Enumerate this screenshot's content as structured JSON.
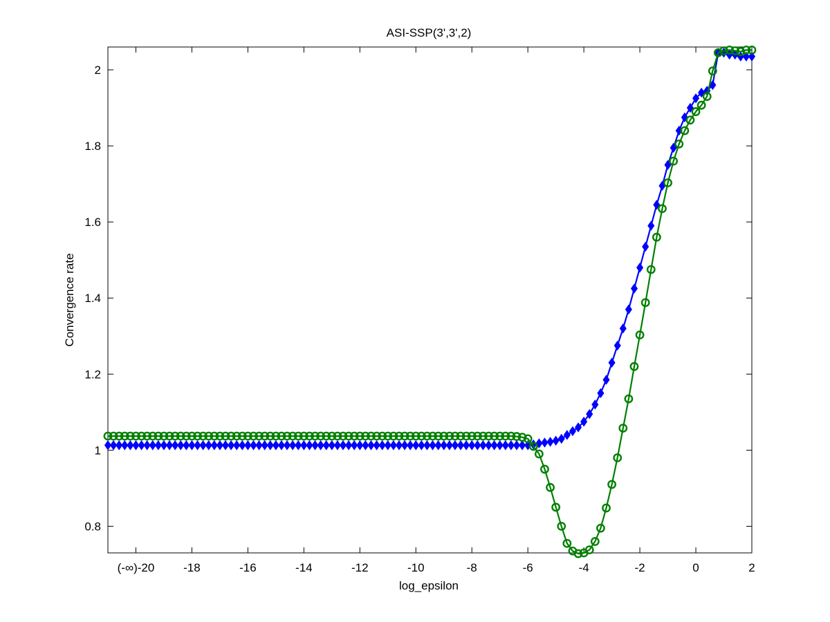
{
  "chart_data": {
    "type": "line",
    "title": "ASI-SSP(3',3',2)",
    "xlabel": "log_epsilon",
    "ylabel": "Convergence rate",
    "xlim": [
      -21,
      2
    ],
    "ylim": [
      0.73,
      2.06
    ],
    "x_tick_values": [
      -20,
      -18,
      -16,
      -14,
      -12,
      -10,
      -8,
      -6,
      -4,
      -2,
      0,
      2
    ],
    "x_tick_labels": [
      "(-∞)-20",
      "-18",
      "-16",
      "-14",
      "-12",
      "-10",
      "-8",
      "-6",
      "-4",
      "-2",
      "0",
      "2"
    ],
    "y_tick_values": [
      0.8,
      1.0,
      1.2,
      1.4,
      1.6,
      1.8,
      2.0
    ],
    "y_tick_labels": [
      "0.8",
      "1",
      "1.2",
      "1.4",
      "1.6",
      "1.8",
      "2"
    ],
    "grid": false,
    "series": [
      {
        "color": "#0000ff",
        "marker": "diamond",
        "filled": true,
        "plateau": {
          "x_start": -21,
          "x_end": -6,
          "step": 0.2,
          "y": 1.013
        },
        "points": [
          [
            -5.8,
            1.015
          ],
          [
            -5.6,
            1.018
          ],
          [
            -5.4,
            1.02
          ],
          [
            -5.2,
            1.022
          ],
          [
            -5.0,
            1.025
          ],
          [
            -4.8,
            1.03
          ],
          [
            -4.6,
            1.04
          ],
          [
            -4.4,
            1.05
          ],
          [
            -4.2,
            1.06
          ],
          [
            -4.0,
            1.075
          ],
          [
            -3.8,
            1.095
          ],
          [
            -3.6,
            1.12
          ],
          [
            -3.4,
            1.15
          ],
          [
            -3.2,
            1.185
          ],
          [
            -3.0,
            1.23
          ],
          [
            -2.8,
            1.275
          ],
          [
            -2.6,
            1.32
          ],
          [
            -2.4,
            1.37
          ],
          [
            -2.2,
            1.425
          ],
          [
            -2.0,
            1.48
          ],
          [
            -1.8,
            1.535
          ],
          [
            -1.6,
            1.59
          ],
          [
            -1.4,
            1.645
          ],
          [
            -1.2,
            1.695
          ],
          [
            -1.0,
            1.75
          ],
          [
            -0.8,
            1.795
          ],
          [
            -0.6,
            1.84
          ],
          [
            -0.4,
            1.875
          ],
          [
            -0.2,
            1.9
          ],
          [
            0.0,
            1.925
          ],
          [
            0.2,
            1.94
          ],
          [
            0.4,
            1.945
          ],
          [
            0.6,
            1.96
          ],
          [
            0.8,
            2.045
          ],
          [
            1.0,
            2.045
          ],
          [
            1.2,
            2.04
          ],
          [
            1.4,
            2.04
          ],
          [
            1.6,
            2.035
          ],
          [
            1.8,
            2.035
          ],
          [
            2.0,
            2.035
          ]
        ]
      },
      {
        "color": "#007f00",
        "marker": "circle",
        "filled": false,
        "plateau": {
          "x_start": -21,
          "x_end": -6.6,
          "step": 0.2,
          "y": 1.037
        },
        "points": [
          [
            -6.4,
            1.036
          ],
          [
            -6.2,
            1.034
          ],
          [
            -6.0,
            1.03
          ],
          [
            -5.8,
            1.01
          ],
          [
            -5.6,
            0.99
          ],
          [
            -5.4,
            0.95
          ],
          [
            -5.2,
            0.902
          ],
          [
            -5.0,
            0.85
          ],
          [
            -4.8,
            0.8
          ],
          [
            -4.6,
            0.755
          ],
          [
            -4.4,
            0.735
          ],
          [
            -4.2,
            0.728
          ],
          [
            -4.0,
            0.73
          ],
          [
            -3.8,
            0.738
          ],
          [
            -3.6,
            0.76
          ],
          [
            -3.4,
            0.795
          ],
          [
            -3.2,
            0.848
          ],
          [
            -3.0,
            0.91
          ],
          [
            -2.8,
            0.98
          ],
          [
            -2.6,
            1.058
          ],
          [
            -2.4,
            1.135
          ],
          [
            -2.2,
            1.22
          ],
          [
            -2.0,
            1.303
          ],
          [
            -1.8,
            1.388
          ],
          [
            -1.6,
            1.475
          ],
          [
            -1.4,
            1.56
          ],
          [
            -1.2,
            1.635
          ],
          [
            -1.0,
            1.703
          ],
          [
            -0.8,
            1.76
          ],
          [
            -0.6,
            1.805
          ],
          [
            -0.4,
            1.84
          ],
          [
            -0.2,
            1.868
          ],
          [
            0.0,
            1.89
          ],
          [
            0.2,
            1.907
          ],
          [
            0.4,
            1.93
          ],
          [
            0.6,
            1.997
          ],
          [
            0.8,
            2.045
          ],
          [
            1.0,
            2.05
          ],
          [
            1.2,
            2.052
          ],
          [
            1.4,
            2.05
          ],
          [
            1.6,
            2.048
          ],
          [
            1.8,
            2.052
          ],
          [
            2.0,
            2.052
          ]
        ]
      }
    ]
  }
}
